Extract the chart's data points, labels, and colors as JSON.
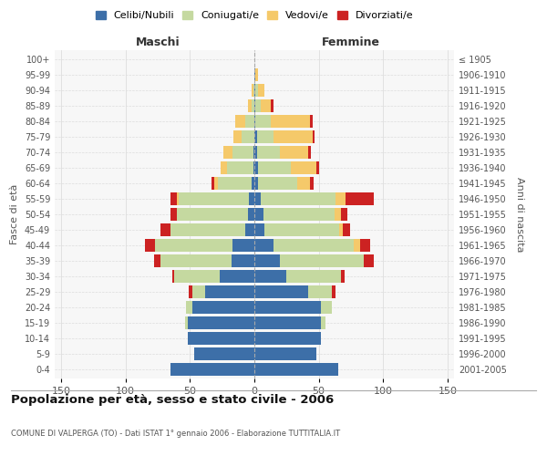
{
  "age_groups": [
    "0-4",
    "5-9",
    "10-14",
    "15-19",
    "20-24",
    "25-29",
    "30-34",
    "35-39",
    "40-44",
    "45-49",
    "50-54",
    "55-59",
    "60-64",
    "65-69",
    "70-74",
    "75-79",
    "80-84",
    "85-89",
    "90-94",
    "95-99",
    "100+"
  ],
  "birth_years": [
    "2001-2005",
    "1996-2000",
    "1991-1995",
    "1986-1990",
    "1981-1985",
    "1976-1980",
    "1971-1975",
    "1966-1970",
    "1961-1965",
    "1956-1960",
    "1951-1955",
    "1946-1950",
    "1941-1945",
    "1936-1940",
    "1931-1935",
    "1926-1930",
    "1921-1925",
    "1916-1920",
    "1911-1915",
    "1906-1910",
    "≤ 1905"
  ],
  "male": {
    "celibi": [
      65,
      47,
      52,
      52,
      48,
      38,
      27,
      18,
      17,
      7,
      5,
      4,
      2,
      1,
      1,
      0,
      0,
      0,
      0,
      0,
      0
    ],
    "coniugati": [
      0,
      0,
      0,
      2,
      5,
      10,
      35,
      55,
      60,
      58,
      55,
      55,
      26,
      20,
      16,
      10,
      7,
      2,
      1,
      0,
      0
    ],
    "vedovi": [
      0,
      0,
      0,
      0,
      0,
      0,
      0,
      0,
      0,
      0,
      0,
      1,
      3,
      5,
      7,
      6,
      8,
      3,
      1,
      0,
      0
    ],
    "divorziati": [
      0,
      0,
      0,
      0,
      0,
      3,
      2,
      5,
      8,
      8,
      5,
      5,
      2,
      0,
      0,
      0,
      0,
      0,
      0,
      0,
      0
    ]
  },
  "female": {
    "nubili": [
      65,
      48,
      52,
      52,
      52,
      42,
      25,
      20,
      15,
      8,
      7,
      5,
      3,
      3,
      2,
      2,
      1,
      1,
      1,
      1,
      0
    ],
    "coniugate": [
      0,
      0,
      0,
      3,
      8,
      18,
      42,
      65,
      62,
      58,
      55,
      58,
      30,
      25,
      18,
      13,
      12,
      4,
      2,
      0,
      0
    ],
    "vedove": [
      0,
      0,
      0,
      0,
      0,
      0,
      0,
      0,
      5,
      3,
      5,
      8,
      10,
      20,
      22,
      30,
      30,
      8,
      5,
      2,
      0
    ],
    "divorziate": [
      0,
      0,
      0,
      0,
      0,
      3,
      3,
      8,
      8,
      5,
      5,
      22,
      3,
      2,
      2,
      2,
      2,
      2,
      0,
      0,
      0
    ]
  },
  "colors": {
    "celibi": "#3d6fa8",
    "coniugati": "#c5d9a0",
    "vedovi": "#f5c96a",
    "divorziati": "#cc2222"
  },
  "title": "Popolazione per età, sesso e stato civile - 2006",
  "subtitle": "COMUNE DI VALPERGA (TO) - Dati ISTAT 1° gennaio 2006 - Elaborazione TUTTITALIA.IT",
  "xlabel_left": "Maschi",
  "xlabel_right": "Femmine",
  "ylabel_left": "Fasce di età",
  "ylabel_right": "Anni di nascita",
  "xlim": 155,
  "legend_labels": [
    "Celibi/Nubili",
    "Coniugati/e",
    "Vedovi/e",
    "Divorziati/e"
  ],
  "background_color": "#ffffff",
  "plot_bg": "#f7f7f7",
  "grid_color": "#dddddd"
}
